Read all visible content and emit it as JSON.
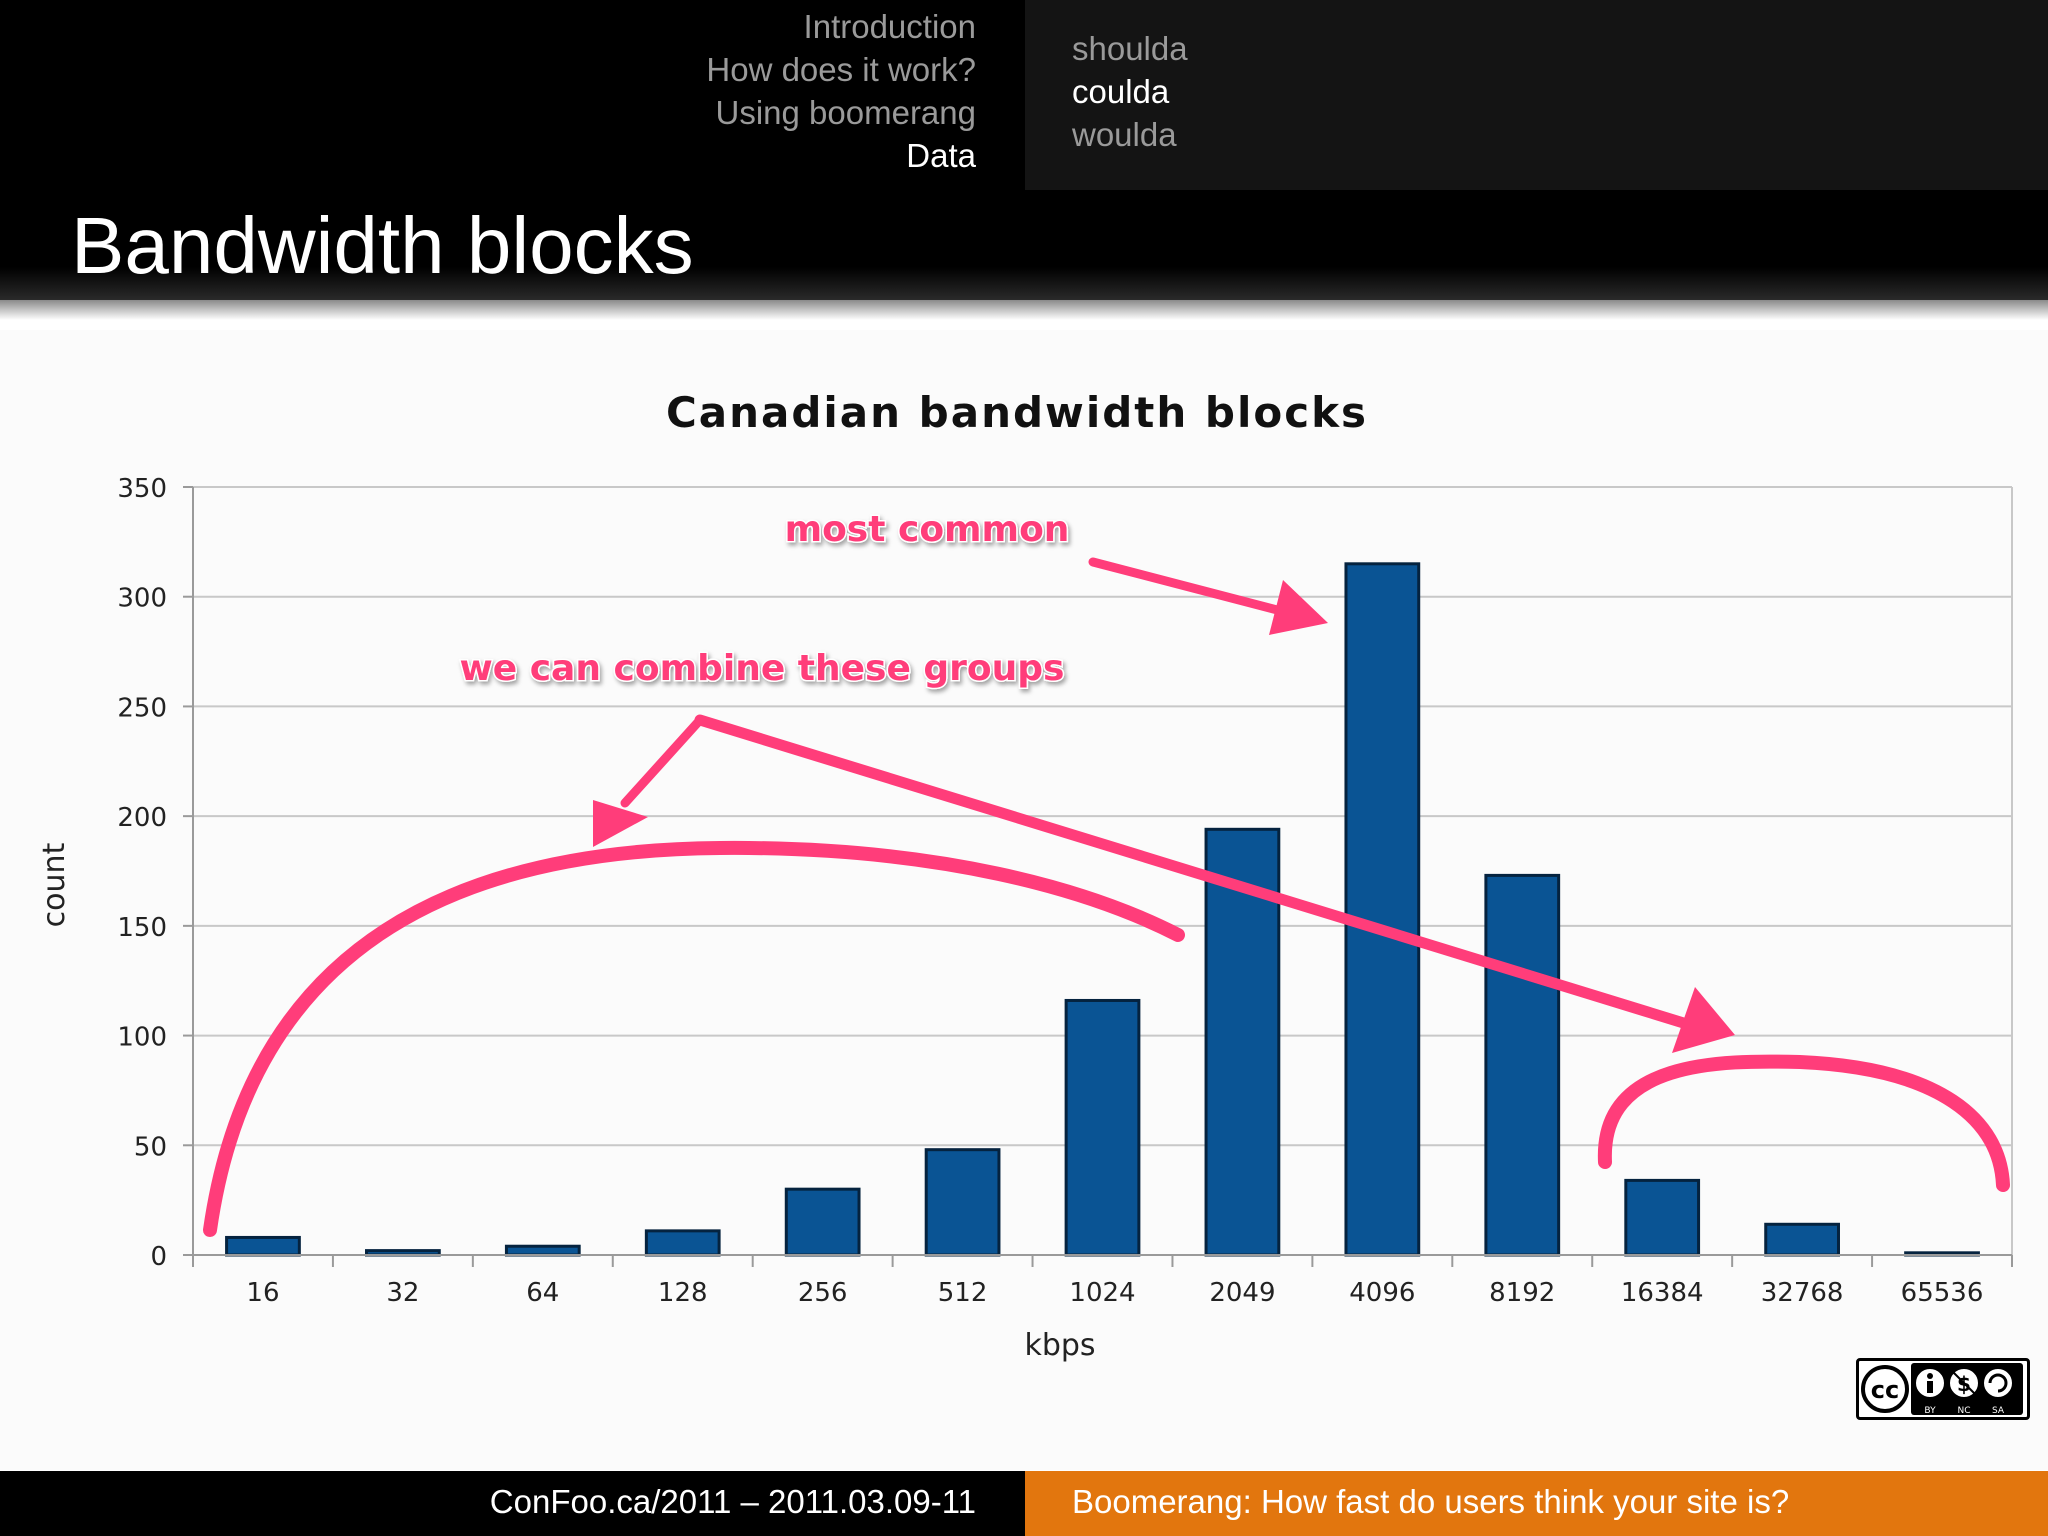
{
  "header": {
    "sections": [
      "Introduction",
      "How does it work?",
      "Using boomerang",
      "Data"
    ],
    "active_section": 3,
    "subsections": [
      "shoulda",
      "coulda",
      "woulda"
    ],
    "active_subsection": 1
  },
  "slide": {
    "title": "Bandwidth blocks"
  },
  "chart_data": {
    "type": "bar",
    "title": "Canadian bandwidth blocks",
    "xlabel": "kbps",
    "ylabel": "count",
    "categories": [
      "16",
      "32",
      "64",
      "128",
      "256",
      "512",
      "1024",
      "2049",
      "4096",
      "8192",
      "16384",
      "32768",
      "65536"
    ],
    "values": [
      8,
      2,
      4,
      11,
      30,
      48,
      116,
      194,
      315,
      173,
      34,
      14,
      1
    ],
    "ylim": [
      0,
      350
    ],
    "yticks": [
      0,
      50,
      100,
      150,
      200,
      250,
      300,
      350
    ],
    "grid": true,
    "bar_color": "#0a5494",
    "annotations": [
      {
        "text": "most common",
        "color": "#ff3d7a"
      },
      {
        "text": "we can combine these groups",
        "color": "#ff3d7a"
      }
    ]
  },
  "license": {
    "labels": [
      "BY",
      "NC",
      "SA"
    ]
  },
  "footer": {
    "left": "ConFoo.ca/2011 – 2011.03.09-11",
    "right": "Boomerang: How fast do users think your site is?"
  }
}
